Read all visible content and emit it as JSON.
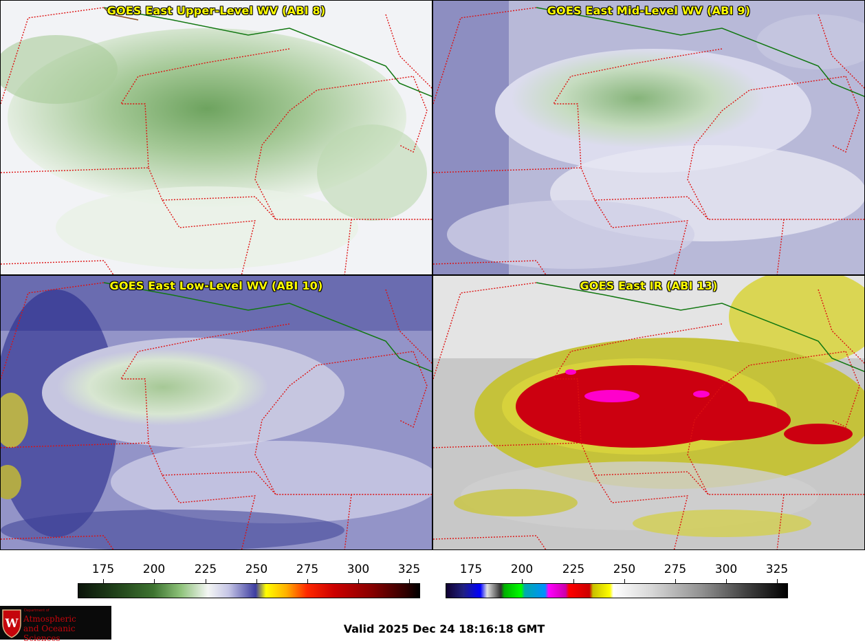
{
  "panels": [
    {
      "title": "GOES East Upper-Level WV (ABI 8)"
    },
    {
      "title": "GOES East Mid-Level WV (ABI 9)"
    },
    {
      "title": "GOES East Low-Level WV (ABI 10)"
    },
    {
      "title": "GOES East IR (ABI 13)"
    }
  ],
  "colorbars": {
    "wv": {
      "ticks": [
        "175",
        "200",
        "225",
        "250",
        "275",
        "300",
        "325"
      ]
    },
    "ir": {
      "ticks": [
        "175",
        "200",
        "225",
        "250",
        "275",
        "300",
        "325"
      ]
    }
  },
  "logo": {
    "dept": "Department of",
    "line1": "Atmospheric",
    "line2": "and Oceanic Sciences",
    "letter": "W"
  },
  "valid_time": "Valid 2025 Dec 24 18:16:18 GMT",
  "colors": {
    "border_state": "#dd1111",
    "border_country": "#117711",
    "title_text": "#ffff00",
    "logo_red": "#c5050c"
  }
}
